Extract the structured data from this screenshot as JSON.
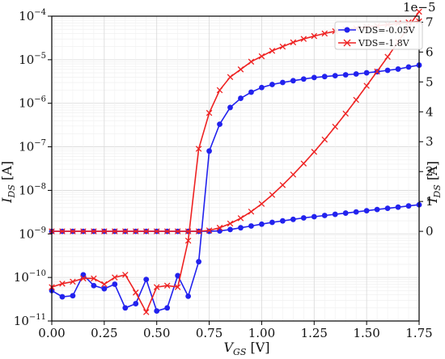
{
  "chart_data": {
    "type": "line",
    "xlabel_main": "V",
    "xlabel_sub": "GS",
    "xlabel_unit": " [V]",
    "ylabel_left_main": "I",
    "ylabel_left_sub": "DS",
    "ylabel_left_unit": " [A]",
    "ylabel_right_main": "I",
    "ylabel_right_sub": "DS",
    "ylabel_right_unit": " [A]",
    "right_axis_offset_label": "1e−5",
    "xlim": [
      0,
      1.75
    ],
    "ylim_left_log": [
      1e-11,
      0.0001
    ],
    "ylim_right_linear": [
      -3e-06,
      7.2e-06
    ],
    "x_ticks": [
      "0.00",
      "0.25",
      "0.50",
      "0.75",
      "1.00",
      "1.25",
      "1.50",
      "1.75"
    ],
    "y_left_ticks": [
      {
        "base": "10",
        "exp": "−11"
      },
      {
        "base": "10",
        "exp": "−10"
      },
      {
        "base": "10",
        "exp": "−9"
      },
      {
        "base": "10",
        "exp": "−8"
      },
      {
        "base": "10",
        "exp": "−7"
      },
      {
        "base": "10",
        "exp": "−6"
      },
      {
        "base": "10",
        "exp": "−5"
      },
      {
        "base": "10",
        "exp": "−4"
      }
    ],
    "y_right_ticks": [
      "0",
      "1",
      "2",
      "3",
      "4",
      "5",
      "6",
      "7"
    ],
    "legend_position": "top-right",
    "grid": true,
    "x": [
      0.0,
      0.05,
      0.1,
      0.15,
      0.2,
      0.25,
      0.3,
      0.35,
      0.4,
      0.45,
      0.5,
      0.55,
      0.6,
      0.65,
      0.7,
      0.75,
      0.8,
      0.85,
      0.9,
      0.95,
      1.0,
      1.05,
      1.1,
      1.15,
      1.2,
      1.25,
      1.3,
      1.35,
      1.4,
      1.45,
      1.5,
      1.55,
      1.6,
      1.65,
      1.7,
      1.75
    ],
    "series": [
      {
        "name": "VDS=-0.05V",
        "color": "#2222ee",
        "marker": "circle",
        "log_values": [
          5e-11,
          3.6e-11,
          3.8e-11,
          1.15e-10,
          6.5e-11,
          5.5e-11,
          7e-11,
          2e-11,
          2.5e-11,
          9e-11,
          1.7e-11,
          2e-11,
          1.1e-10,
          3.7e-11,
          2.3e-10,
          8e-08,
          3.3e-07,
          8e-07,
          1.3e-06,
          1.8e-06,
          2.3e-06,
          2.7e-06,
          3e-06,
          3.3e-06,
          3.6e-06,
          3.9e-06,
          4.1e-06,
          4.3e-06,
          4.5e-06,
          4.7e-06,
          5e-06,
          5.3e-06,
          5.7e-06,
          6.1e-06,
          6.8e-06,
          7.5e-06
        ],
        "linear_values": [
          0,
          0,
          0,
          0,
          0,
          0,
          0,
          0,
          0,
          0,
          0,
          0,
          0,
          0,
          0,
          1e-09,
          1.5e-08,
          6e-08,
          1.2e-07,
          1.8e-07,
          2.4e-07,
          3e-07,
          3.5e-07,
          4e-07,
          4.5e-07,
          4.9e-07,
          5.3e-07,
          5.7e-07,
          6.1e-07,
          6.5e-07,
          6.9e-07,
          7.3e-07,
          7.7e-07,
          8.1e-07,
          8.5e-07,
          8.9e-07
        ]
      },
      {
        "name": "VDS=-1.8V",
        "color": "#ee2222",
        "marker": "x",
        "log_values": [
          6e-11,
          7.2e-11,
          8e-11,
          9.5e-11,
          9.5e-11,
          7e-11,
          1e-10,
          1.15e-10,
          4.5e-11,
          1.6e-11,
          6e-11,
          6.5e-11,
          6e-11,
          7e-10,
          9e-08,
          6e-07,
          2e-06,
          4e-06,
          6e-06,
          9e-06,
          1.2e-05,
          1.6e-05,
          2e-05,
          2.5e-05,
          3e-05,
          3.5e-05,
          4e-05,
          4.5e-05,
          5e-05,
          5.3e-05,
          5.7e-05,
          6e-05,
          6.4e-05,
          6.8e-05,
          7.2e-05,
          7.6e-05
        ],
        "linear_values": [
          0,
          0,
          0,
          0,
          0,
          0,
          0,
          0,
          0,
          0,
          0,
          0,
          0,
          0,
          0,
          3e-08,
          1.2e-07,
          2.6e-07,
          4.4e-07,
          6.6e-07,
          9.2e-07,
          1.22e-06,
          1.55e-06,
          1.9e-06,
          2.27e-06,
          2.66e-06,
          3.07e-06,
          3.5e-06,
          3.94e-06,
          4.4e-06,
          4.87e-06,
          5.35e-06,
          5.84e-06,
          6.34e-06,
          6.85e-06,
          7.35e-06
        ]
      }
    ]
  }
}
